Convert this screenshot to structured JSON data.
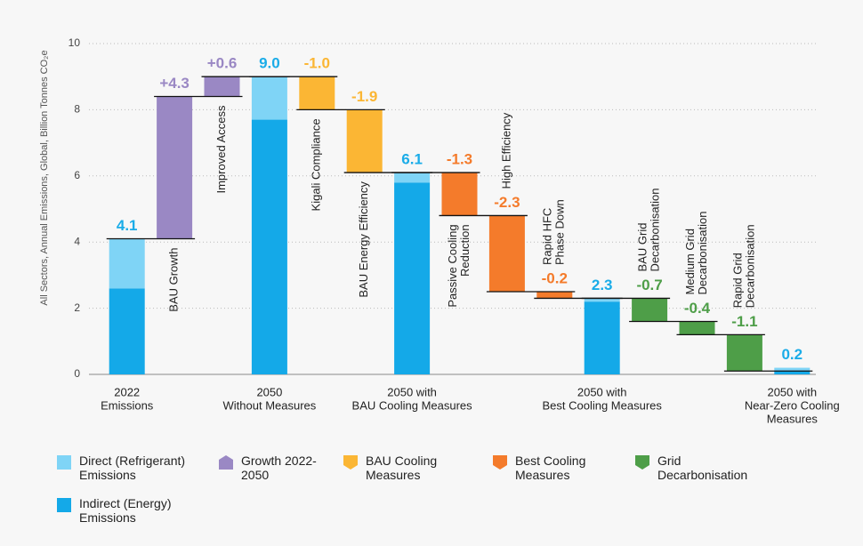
{
  "chart_data": {
    "type": "waterfall",
    "y_label": "All Sectors, Annual Emissions, Global, Billion Tonnes CO₂e",
    "categories": [
      [
        "2022",
        "Emissions"
      ],
      [
        "BAU Growth"
      ],
      [
        "Improved Access"
      ],
      [
        "2050",
        "Without Measures"
      ],
      [
        "Kigali Compliance"
      ],
      [
        "BAU Energy Efficiency"
      ],
      [
        "2050 with",
        "BAU Cooling Measures"
      ],
      [
        "Passive  Cooling",
        "Reduction"
      ],
      [
        "High Efficiency"
      ],
      [
        "Rapid HFC",
        "Phase Down"
      ],
      [
        "2050 with",
        "Best Cooling Measures"
      ],
      [
        "BAU Grid",
        "Decarbonisation"
      ],
      [
        "Medium Grid",
        "Decarbonisation"
      ],
      [
        "Rapid Grid",
        "Decarbonisation"
      ],
      [
        "2050 with",
        "Near-Zero Cooling",
        "Measures"
      ]
    ],
    "totals": {
      "values": [
        4.1,
        null,
        null,
        9.0,
        null,
        null,
        6.1,
        null,
        null,
        null,
        2.3,
        null,
        null,
        null,
        0.2
      ],
      "value_labels": [
        "4.1",
        null,
        null,
        "9.0",
        null,
        null,
        "6.1",
        null,
        null,
        null,
        "2.3",
        null,
        null,
        null,
        "0.2"
      ],
      "color": "#1aace8"
    },
    "series": [
      {
        "name": "Direct (Refrigerant) Emissions",
        "color": "#7fd4f6",
        "stack": "total",
        "values": [
          1.5,
          null,
          null,
          1.3,
          null,
          null,
          0.3,
          null,
          null,
          null,
          0.1,
          null,
          null,
          null,
          0.1
        ]
      },
      {
        "name": "Indirect (Energy) Emissions",
        "color": "#14a9e8",
        "stack": "total",
        "values": [
          2.6,
          null,
          null,
          7.7,
          null,
          null,
          5.8,
          null,
          null,
          null,
          2.2,
          null,
          null,
          null,
          0.1
        ]
      },
      {
        "name": "Growth 2022-2050",
        "color": "#9a88c4",
        "stack": "step",
        "values": [
          null,
          4.3,
          0.6,
          null,
          null,
          null,
          null,
          null,
          null,
          null,
          null,
          null,
          null,
          null,
          null
        ],
        "value_labels": [
          null,
          "+4.3",
          "+0.6",
          null,
          null,
          null,
          null,
          null,
          null,
          null,
          null,
          null,
          null,
          null,
          null
        ]
      },
      {
        "name": "BAU Cooling Measures",
        "color": "#fbb634",
        "stack": "step",
        "values": [
          null,
          null,
          null,
          null,
          -1.0,
          -1.9,
          null,
          null,
          null,
          null,
          null,
          null,
          null,
          null,
          null
        ],
        "value_labels": [
          null,
          null,
          null,
          null,
          "-1.0",
          "-1.9",
          null,
          null,
          null,
          null,
          null,
          null,
          null,
          null,
          null
        ]
      },
      {
        "name": "Best Cooling Measures",
        "color": "#f47b2b",
        "stack": "step",
        "values": [
          null,
          null,
          null,
          null,
          null,
          null,
          null,
          -1.3,
          -2.3,
          -0.2,
          null,
          null,
          null,
          null,
          null
        ],
        "value_labels": [
          null,
          null,
          null,
          null,
          null,
          null,
          null,
          "-1.3",
          "-2.3",
          "-0.2",
          null,
          null,
          null,
          null,
          null
        ]
      },
      {
        "name": "Grid Decarbonisation",
        "color": "#4e9e48",
        "stack": "step",
        "values": [
          null,
          null,
          null,
          null,
          null,
          null,
          null,
          null,
          null,
          null,
          null,
          -0.7,
          -0.4,
          -1.1,
          null
        ],
        "value_labels": [
          null,
          null,
          null,
          null,
          null,
          null,
          null,
          null,
          null,
          null,
          null,
          "-0.7",
          "-0.4",
          "-1.1",
          null
        ]
      }
    ],
    "ylim": [
      0,
      10
    ],
    "yticks": [
      0,
      2,
      4,
      6,
      8,
      10
    ],
    "grid": true
  }
}
